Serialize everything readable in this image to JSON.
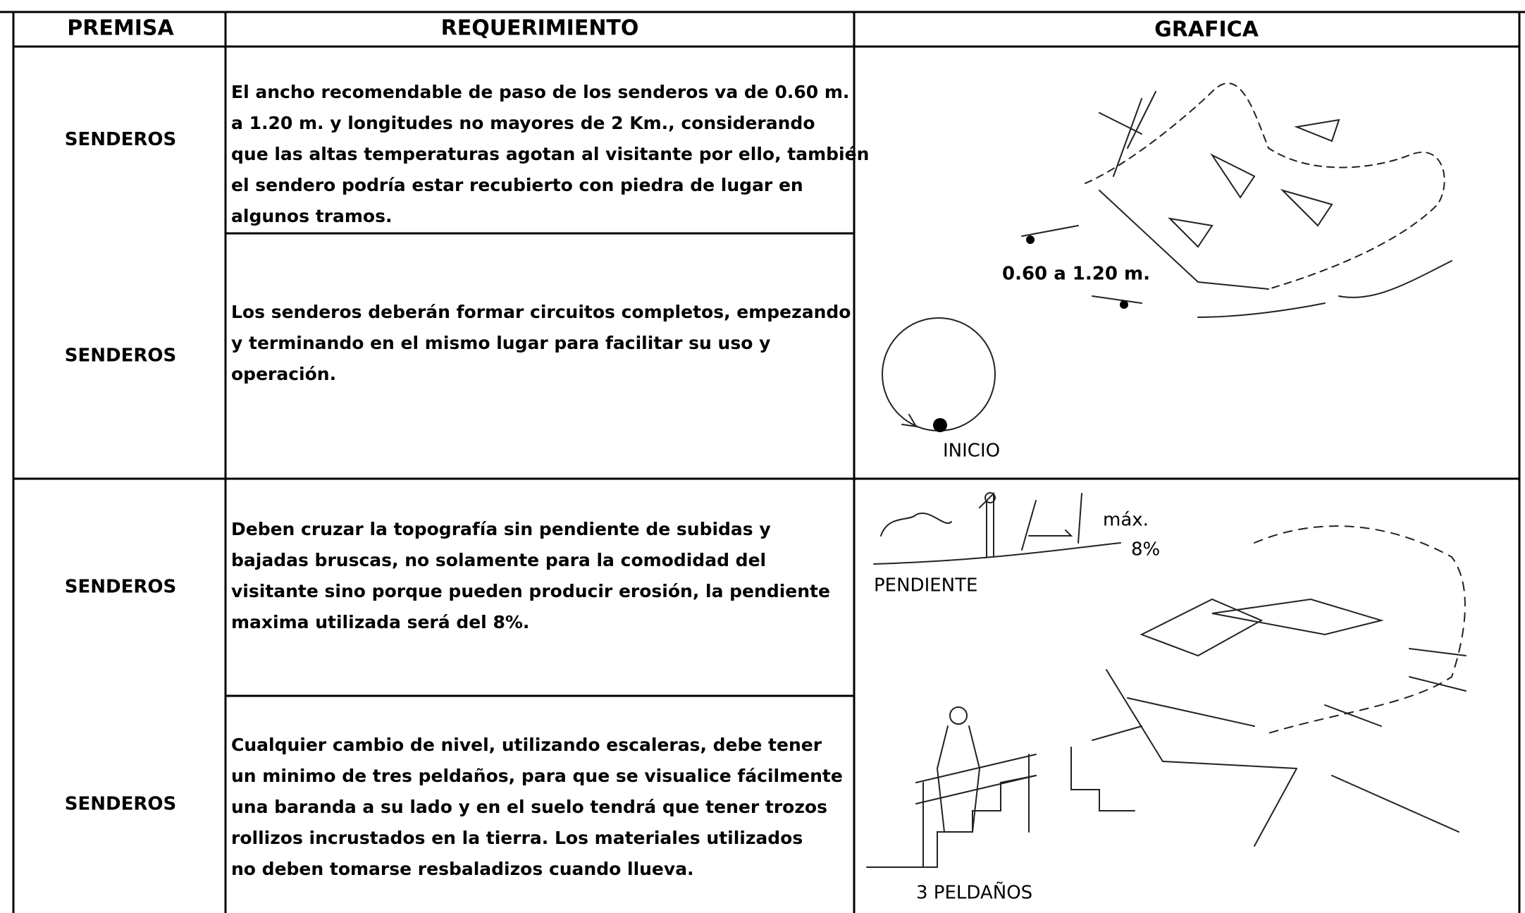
{
  "header": {
    "columns": [
      "PREMISA",
      "REQUERIMIENTO",
      "GRAFICA"
    ]
  },
  "table": {
    "rows": [
      {
        "premisa": "SENDEROS",
        "requerimiento": [
          "El ancho recomendable de paso de los senderos va de 0.60 m.",
          "a 1.20 m. y longitudes no mayores de 2 Km., considerando",
          "que las altas temperaturas agotan al visitante por ello, también",
          "el sendero podría estar recubierto con piedra de lugar en",
          "algunos tramos."
        ]
      },
      {
        "premisa": "SENDEROS",
        "requerimiento": [
          "Los senderos deberán formar circuitos completos, empezando",
          "y terminando en el mismo lugar para facilitar su uso y",
          "operación."
        ]
      },
      {
        "premisa": "SENDEROS",
        "requerimiento": [
          "Deben cruzar la topografía sin pendiente de subidas y",
          "bajadas bruscas, no solamente para la comodidad del",
          "visitante sino porque pueden producir erosión, la pendiente",
          "maxima utilizada será del 8%."
        ]
      },
      {
        "premisa": "SENDEROS",
        "requerimiento": [
          "Cualquier cambio de nivel, utilizando escaleras, debe tener",
          "un minimo de tres peldaños, para que se visualice fácilmente",
          "una baranda a su lado y en el suelo tendrá que tener trozos",
          "rollizos incrustados en la tierra.  Los materiales utilizados",
          "no deben tomarse resbaladizos cuando llueva."
        ]
      }
    ]
  },
  "graphics": {
    "top": {
      "width_label": "0.60 a 1.20 m.",
      "start_label": "INICIO"
    },
    "bottom": {
      "slope_max": "máx.",
      "slope_value": "8%",
      "slope_label": "PENDIENTE",
      "steps_label": "3 PELDAÑOS"
    }
  }
}
